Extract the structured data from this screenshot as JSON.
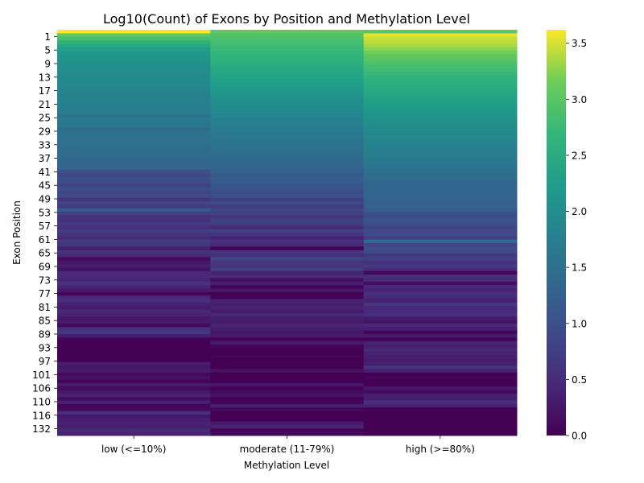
{
  "chart_data": {
    "type": "heatmap",
    "title": "Log10(Count) of Exons by Position and Methylation Level",
    "xlabel": "Methylation Level",
    "ylabel": "Exon Position",
    "columns": [
      "low (<=10%)",
      "moderate (11-79%)",
      "high (>=80%)"
    ],
    "row_tick_labels": [
      "1",
      "5",
      "9",
      "13",
      "17",
      "21",
      "25",
      "29",
      "33",
      "37",
      "41",
      "45",
      "49",
      "53",
      "57",
      "61",
      "65",
      "69",
      "73",
      "77",
      "81",
      "85",
      "89",
      "93",
      "97",
      "101",
      "106",
      "110",
      "116",
      "132"
    ],
    "row_count": 116,
    "colorbar": {
      "range": [
        0,
        3.62
      ],
      "ticks": [
        "0.0",
        "0.5",
        "1.0",
        "1.5",
        "2.0",
        "2.5",
        "3.0",
        "3.5"
      ],
      "colormap": "viridis"
    },
    "values": {
      "low (<=10%)": [
        3.62,
        3.05,
        2.85,
        2.65,
        2.45,
        2.3,
        2.2,
        2.12,
        2.08,
        2.05,
        2.02,
        2.0,
        1.97,
        1.95,
        1.93,
        1.9,
        1.87,
        1.85,
        1.82,
        1.8,
        1.78,
        1.75,
        1.73,
        1.7,
        1.55,
        1.65,
        1.62,
        1.6,
        1.45,
        1.55,
        1.52,
        1.5,
        1.48,
        1.45,
        1.43,
        1.4,
        1.38,
        1.35,
        1.33,
        1.3,
        1.0,
        0.9,
        1.0,
        0.95,
        0.8,
        1.0,
        0.85,
        0.95,
        0.6,
        0.85,
        0.7,
        1.15,
        0.75,
        0.6,
        0.55,
        0.7,
        0.55,
        0.75,
        0.6,
        0.5,
        0.7,
        0.65,
        0.35,
        0.6,
        0.45,
        0.1,
        0.25,
        0.35,
        0.2,
        0.45,
        0.5,
        0.4,
        0.6,
        0.4,
        0.3,
        0.05,
        0.45,
        0.55,
        0.35,
        0.3,
        0.45,
        0.4,
        0.25,
        0.3,
        0.1,
        0.55,
        0.65,
        0.35,
        0.05,
        0.0,
        0.0,
        0.0,
        0.0,
        0.0,
        0.0,
        0.35,
        0.25,
        0.3,
        0.1,
        0.2,
        0.05,
        0.3,
        0.1,
        0.25,
        0.4,
        0.15,
        0.35,
        0.05,
        0.1,
        0.55,
        0.25,
        0.35,
        0.4,
        0.35,
        0.5,
        0.4
      ],
      "moderate (11-79%)": [
        3.05,
        2.95,
        2.9,
        2.85,
        2.8,
        2.75,
        2.7,
        2.65,
        2.6,
        2.55,
        2.5,
        2.45,
        2.4,
        2.35,
        2.3,
        2.25,
        2.2,
        2.15,
        2.1,
        2.05,
        2.02,
        1.98,
        1.95,
        1.9,
        1.85,
        1.8,
        1.78,
        1.75,
        1.7,
        1.65,
        1.62,
        1.6,
        1.55,
        1.5,
        1.48,
        1.45,
        1.4,
        1.35,
        1.32,
        1.3,
        1.25,
        1.15,
        1.2,
        1.18,
        1.1,
        1.05,
        0.95,
        1.0,
        0.75,
        0.95,
        0.7,
        0.85,
        0.8,
        0.65,
        0.8,
        0.75,
        0.45,
        0.8,
        0.6,
        0.4,
        0.55,
        0.45,
        0.0,
        0.65,
        0.55,
        0.85,
        0.65,
        0.6,
        0.75,
        0.4,
        0.55,
        0.15,
        0.35,
        0.05,
        0.25,
        0.0,
        0.05,
        0.4,
        0.35,
        0.4,
        0.3,
        0.45,
        0.35,
        0.3,
        0.4,
        0.35,
        0.25,
        0.3,
        0.05,
        0.3,
        0.05,
        0.0,
        0.0,
        0.05,
        0.0,
        0.0,
        0.0,
        0.2,
        0.0,
        0.0,
        0.0,
        0.25,
        0.0,
        0.1,
        0.2,
        0.0,
        0.05,
        0.35,
        0.1,
        0.0,
        0.0,
        0.0,
        0.3,
        0.4,
        0.05,
        0.1
      ],
      "high (>=80%)": [
        3.0,
        3.55,
        3.45,
        3.4,
        3.35,
        3.25,
        3.15,
        3.05,
        3.0,
        2.92,
        2.85,
        2.8,
        2.72,
        2.65,
        2.6,
        2.55,
        2.5,
        2.45,
        2.4,
        2.35,
        2.3,
        2.25,
        2.2,
        2.15,
        2.1,
        2.05,
        2.02,
        1.98,
        1.95,
        1.92,
        1.9,
        1.85,
        1.82,
        1.8,
        1.75,
        1.72,
        1.7,
        1.65,
        1.6,
        1.55,
        1.5,
        1.45,
        1.42,
        1.35,
        1.35,
        1.32,
        1.3,
        1.3,
        1.28,
        1.25,
        1.25,
        1.2,
        1.0,
        0.95,
        1.05,
        1.0,
        0.85,
        0.95,
        0.9,
        0.75,
        1.4,
        0.85,
        0.95,
        0.9,
        0.65,
        0.8,
        0.55,
        0.7,
        0.5,
        0.05,
        0.55,
        0.45,
        0.15,
        0.5,
        0.4,
        0.55,
        0.45,
        0.35,
        0.65,
        0.45,
        0.5,
        0.55,
        0.3,
        0.2,
        0.45,
        0.35,
        0.05,
        0.3,
        0.05,
        0.4,
        0.35,
        0.45,
        0.4,
        0.35,
        0.3,
        0.35,
        0.6,
        0.35,
        0.0,
        0.05,
        0.0,
        0.0,
        0.25,
        0.1,
        0.35,
        0.35,
        0.55,
        0.4,
        0.0,
        0.0,
        0.0,
        0.0,
        0.0,
        0.0,
        0.0,
        0.0
      ]
    }
  }
}
